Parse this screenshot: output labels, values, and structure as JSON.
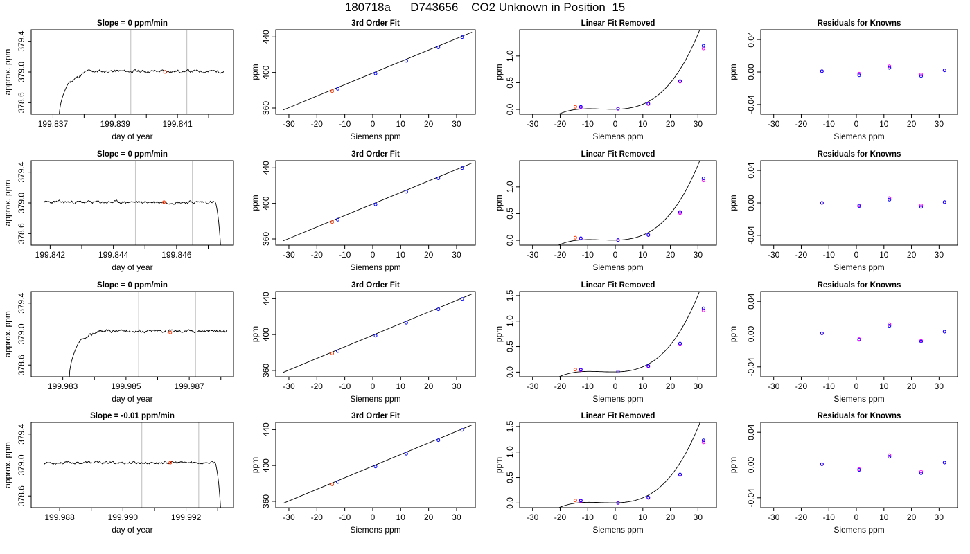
{
  "title": "180718a      D743656    CO2 Unknown in Position  15",
  "colors": {
    "trace": "#000000",
    "unknown": "#ff3300",
    "known": "#0000ff",
    "resid1": "#ff00ff",
    "resid2": "#0000ff",
    "vline": "#c8c8c8"
  },
  "chart_data": [
    {
      "type": "line",
      "panel": "time",
      "row": 1,
      "title": "Slope =  0  ppm/min",
      "xlabel": "day of year",
      "ylabel": "approx. ppm",
      "xlim": [
        199.8363,
        199.8428
      ],
      "ylim": [
        378.45,
        379.55
      ],
      "xticks": [
        199.837,
        199.838,
        199.839,
        199.84,
        199.841,
        199.842
      ],
      "xticklabels": [
        "199.837",
        "",
        "199.839",
        "",
        "199.841",
        ""
      ],
      "yticks": [
        378.6,
        379.0,
        379.4
      ],
      "yticklabels": [
        "378.6",
        "379.0",
        "379.4"
      ],
      "vlines": [
        199.8395,
        199.8413
      ],
      "marker": {
        "x": 199.8406,
        "y": 379.0
      },
      "series": {
        "start": 199.8371,
        "end": 199.8425,
        "level": 379.01,
        "shape": "rise",
        "rise_start": 199.8372,
        "rise_end": 199.8375,
        "low": 378.4,
        "seed": 11,
        "amp": 0.014
      }
    },
    {
      "type": "scatter",
      "panel": "fit",
      "row": 1,
      "title": "3rd Order Fit",
      "xlabel": "Siemens ppm",
      "ylabel": "ppm",
      "xlim": [
        -34.7,
        36.7
      ],
      "ylim": [
        353,
        448
      ],
      "xticks": [
        -30,
        -20,
        -10,
        0,
        10,
        20,
        30
      ],
      "yticks": [
        360,
        400,
        440
      ],
      "knowns": {
        "x": [
          -12.5,
          1.0,
          12.0,
          23.5,
          32.0
        ],
        "y": [
          381.6,
          398.8,
          413.1,
          428.2,
          439.7
        ]
      },
      "unknown": {
        "x": [
          -14.5
        ],
        "y": [
          379.0
        ]
      },
      "curve": {
        "x0": -32,
        "x1": 35.5,
        "a": 399.3,
        "b": 1.295
      }
    },
    {
      "type": "scatter",
      "panel": "linremoved",
      "row": 1,
      "title": "Linear Fit Removed",
      "xlabel": "Siemens ppm",
      "ylabel": "ppm",
      "xlim": [
        -34.7,
        36.7
      ],
      "ylim": [
        -0.09,
        1.49
      ],
      "xticks": [
        -30,
        -20,
        -10,
        0,
        10,
        20,
        30
      ],
      "yticks": [
        0.0,
        0.5,
        1.0
      ],
      "yticklabels": [
        "0.0",
        "0.5",
        "1.0"
      ],
      "knowns": {
        "x": [
          -12.5,
          -12.5,
          1.0,
          1.0,
          12.0,
          12.0,
          23.5,
          23.5,
          32.0,
          32.0
        ],
        "y": [
          0.04,
          0.05,
          0.01,
          0.015,
          0.1,
          0.11,
          0.52,
          0.53,
          1.14,
          1.19
        ]
      },
      "unknown": {
        "x": [
          -14.5
        ],
        "y": [
          0.05
        ]
      },
      "curve": {
        "x0": -32,
        "x1": 35.5,
        "cubic": 1.4
      },
      "cubic_scale": 1.0
    },
    {
      "type": "scatter",
      "panel": "resid",
      "row": 1,
      "title": "Residuals for Knowns",
      "xlabel": "Siemens ppm",
      "ylabel": "ppm",
      "xlim": [
        -34.7,
        36.7
      ],
      "ylim": [
        -0.052,
        0.052
      ],
      "xticks": [
        -30,
        -20,
        -10,
        0,
        10,
        20,
        30
      ],
      "yticks": [
        -0.04,
        0.0,
        0.04
      ],
      "yticklabels": [
        "-0.04",
        "0.00",
        "0.04"
      ],
      "points": {
        "x": [
          -12.5,
          1.0,
          12.0,
          23.5,
          32.0
        ],
        "y1": [
          0.001,
          -0.002,
          0.007,
          -0.003,
          0.002
        ],
        "y2": [
          0.001,
          -0.004,
          0.005,
          -0.005,
          0.002
        ]
      }
    },
    {
      "type": "line",
      "panel": "time",
      "row": 2,
      "title": "Slope =  0  ppm/min",
      "xlabel": "day of year",
      "ylabel": "approx. ppm",
      "xlim": [
        199.8414,
        199.8478
      ],
      "ylim": [
        378.45,
        379.55
      ],
      "xticks": [
        199.842,
        199.843,
        199.844,
        199.845,
        199.846,
        199.847
      ],
      "xticklabels": [
        "199.842",
        "",
        "199.844",
        "",
        "199.846",
        ""
      ],
      "yticks": [
        378.6,
        379.0,
        379.4
      ],
      "yticklabels": [
        "378.6",
        "379.0",
        "379.4"
      ],
      "vlines": [
        199.8447,
        199.8465
      ],
      "marker": {
        "x": 199.8456,
        "y": 379.01
      },
      "series": {
        "start": 199.8418,
        "end": 199.8474,
        "level": 379.01,
        "shape": "fall",
        "fall_start": 199.8472,
        "fall_end": 199.8474,
        "low": 378.4,
        "seed": 23,
        "amp": 0.014
      }
    },
    {
      "type": "scatter",
      "panel": "fit",
      "row": 2,
      "title": "3rd Order Fit",
      "xlabel": "Siemens ppm",
      "ylabel": "ppm",
      "xlim": [
        -34.7,
        36.7
      ],
      "ylim": [
        353,
        448
      ],
      "xticks": [
        -30,
        -20,
        -10,
        0,
        10,
        20,
        30
      ],
      "yticks": [
        360,
        400,
        440
      ],
      "knowns": {
        "x": [
          -12.5,
          1.0,
          12.0,
          23.5,
          32.0
        ],
        "y": [
          381.6,
          398.8,
          413.1,
          428.2,
          439.7
        ]
      },
      "unknown": {
        "x": [
          -14.5
        ],
        "y": [
          379.0
        ]
      },
      "curve": {
        "x0": -32,
        "x1": 35.5,
        "a": 399.3,
        "b": 1.295
      }
    },
    {
      "type": "scatter",
      "panel": "linremoved",
      "row": 2,
      "title": "Linear Fit Removed",
      "xlabel": "Siemens ppm",
      "ylabel": "ppm",
      "xlim": [
        -34.7,
        36.7
      ],
      "ylim": [
        -0.09,
        1.49
      ],
      "xticks": [
        -30,
        -20,
        -10,
        0,
        10,
        20,
        30
      ],
      "yticks": [
        0.0,
        0.5,
        1.0
      ],
      "yticklabels": [
        "0.0",
        "0.5",
        "1.0"
      ],
      "knowns": {
        "x": [
          -12.5,
          -12.5,
          1.0,
          1.0,
          12.0,
          12.0,
          23.5,
          23.5,
          32.0,
          32.0
        ],
        "y": [
          0.03,
          0.04,
          0.0,
          0.005,
          0.1,
          0.1,
          0.51,
          0.53,
          1.12,
          1.16
        ]
      },
      "unknown": {
        "x": [
          -14.5
        ],
        "y": [
          0.05
        ]
      },
      "curve": {
        "x0": -32,
        "x1": 35.5,
        "cubic": 1.4
      },
      "cubic_scale": 1.0
    },
    {
      "type": "scatter",
      "panel": "resid",
      "row": 2,
      "title": "Residuals for Knowns",
      "xlabel": "Siemens ppm",
      "ylabel": "ppm",
      "xlim": [
        -34.7,
        36.7
      ],
      "ylim": [
        -0.052,
        0.052
      ],
      "xticks": [
        -30,
        -20,
        -10,
        0,
        10,
        20,
        30
      ],
      "yticks": [
        -0.04,
        0.0,
        0.04
      ],
      "yticklabels": [
        "-0.04",
        "0.00",
        "0.04"
      ],
      "points": {
        "x": [
          -12.5,
          1.0,
          12.0,
          23.5,
          32.0
        ],
        "y1": [
          0.0,
          -0.003,
          0.006,
          -0.003,
          0.001
        ],
        "y2": [
          0.0,
          -0.004,
          0.004,
          -0.005,
          0.001
        ]
      }
    },
    {
      "type": "line",
      "panel": "time",
      "row": 3,
      "title": "Slope =  0  ppm/min",
      "xlabel": "day of year",
      "ylabel": "approx. ppm",
      "xlim": [
        199.982,
        199.9884
      ],
      "ylim": [
        378.45,
        379.55
      ],
      "xticks": [
        199.983,
        199.984,
        199.985,
        199.986,
        199.987,
        199.988
      ],
      "xticklabels": [
        "199.983",
        "",
        "199.985",
        "",
        "199.987",
        ""
      ],
      "yticks": [
        378.6,
        379.0,
        379.4
      ],
      "yticklabels": [
        "378.6",
        "379.0",
        "379.4"
      ],
      "vlines": [
        199.9854,
        199.9872
      ],
      "marker": {
        "x": 199.9864,
        "y": 379.02
      },
      "series": {
        "start": 199.9832,
        "end": 199.9882,
        "level": 379.04,
        "shape": "rise",
        "rise_start": 199.9832,
        "rise_end": 199.9835,
        "low": 378.4,
        "seed": 37,
        "amp": 0.014
      }
    },
    {
      "type": "scatter",
      "panel": "fit",
      "row": 3,
      "title": "3rd Order Fit",
      "xlabel": "Siemens ppm",
      "ylabel": "ppm",
      "xlim": [
        -34.7,
        36.7
      ],
      "ylim": [
        353,
        448
      ],
      "xticks": [
        -30,
        -20,
        -10,
        0,
        10,
        20,
        30
      ],
      "yticks": [
        360,
        400,
        440
      ],
      "knowns": {
        "x": [
          -12.5,
          1.0,
          12.0,
          23.5,
          32.0
        ],
        "y": [
          381.6,
          398.8,
          413.1,
          428.2,
          439.7
        ]
      },
      "unknown": {
        "x": [
          -14.5
        ],
        "y": [
          379.0
        ]
      },
      "curve": {
        "x0": -32,
        "x1": 35.5,
        "a": 399.3,
        "b": 1.295
      }
    },
    {
      "type": "scatter",
      "panel": "linremoved",
      "row": 3,
      "title": "Linear Fit Removed",
      "xlabel": "Siemens ppm",
      "ylabel": "ppm",
      "xlim": [
        -34.7,
        36.7
      ],
      "ylim": [
        -0.09,
        1.58
      ],
      "xticks": [
        -30,
        -20,
        -10,
        0,
        10,
        20,
        30
      ],
      "yticks": [
        0.0,
        0.5,
        1.0,
        1.5
      ],
      "yticklabels": [
        "0.0",
        "0.5",
        "1.0",
        "1.5"
      ],
      "knowns": {
        "x": [
          -12.5,
          -12.5,
          1.0,
          1.0,
          12.0,
          12.0,
          23.5,
          23.5,
          32.0,
          32.0
        ],
        "y": [
          0.04,
          0.05,
          0.01,
          0.01,
          0.11,
          0.12,
          0.55,
          0.56,
          1.21,
          1.25
        ]
      },
      "unknown": {
        "x": [
          -14.5
        ],
        "y": [
          0.05
        ]
      },
      "curve": {
        "x0": -32,
        "x1": 35.5,
        "cubic": 1.5
      },
      "cubic_scale": 1.07
    },
    {
      "type": "scatter",
      "panel": "resid",
      "row": 3,
      "title": "Residuals for Knowns",
      "xlabel": "Siemens ppm",
      "ylabel": "ppm",
      "xlim": [
        -34.7,
        36.7
      ],
      "ylim": [
        -0.052,
        0.052
      ],
      "xticks": [
        -30,
        -20,
        -10,
        0,
        10,
        20,
        30
      ],
      "yticks": [
        -0.04,
        0.0,
        0.04
      ],
      "yticklabels": [
        "-0.04",
        "0.00",
        "0.04"
      ],
      "points": {
        "x": [
          -12.5,
          1.0,
          12.0,
          23.5,
          32.0
        ],
        "y1": [
          0.001,
          -0.006,
          0.012,
          -0.008,
          0.003
        ],
        "y2": [
          0.001,
          -0.007,
          0.01,
          -0.009,
          0.003
        ]
      }
    },
    {
      "type": "line",
      "panel": "time",
      "row": 4,
      "title": "Slope =  -0.01  ppm/min",
      "xlabel": "day of year",
      "ylabel": "approx. ppm",
      "xlim": [
        199.9871,
        199.9935
      ],
      "ylim": [
        378.45,
        379.55
      ],
      "xticks": [
        199.988,
        199.989,
        199.99,
        199.991,
        199.992,
        199.993
      ],
      "xticklabels": [
        "199.988",
        "",
        "199.990",
        "",
        "199.992",
        ""
      ],
      "yticks": [
        378.6,
        379.0,
        379.4
      ],
      "yticklabels": [
        "378.6",
        "379.0",
        "379.4"
      ],
      "vlines": [
        199.9906,
        199.9924
      ],
      "marker": {
        "x": 199.9915,
        "y": 379.03
      },
      "series": {
        "start": 199.9875,
        "end": 199.9931,
        "level": 379.03,
        "shape": "fall",
        "fall_start": 199.9929,
        "fall_end": 199.9931,
        "low": 378.4,
        "seed": 53,
        "amp": 0.013
      }
    },
    {
      "type": "scatter",
      "panel": "fit",
      "row": 4,
      "title": "3rd Order Fit",
      "xlabel": "Siemens ppm",
      "ylabel": "ppm",
      "xlim": [
        -34.7,
        36.7
      ],
      "ylim": [
        353,
        448
      ],
      "xticks": [
        -30,
        -20,
        -10,
        0,
        10,
        20,
        30
      ],
      "yticks": [
        360,
        400,
        440
      ],
      "knowns": {
        "x": [
          -12.5,
          1.0,
          12.0,
          23.5,
          32.0
        ],
        "y": [
          381.6,
          398.8,
          413.1,
          428.2,
          439.7
        ]
      },
      "unknown": {
        "x": [
          -14.5
        ],
        "y": [
          379.0
        ]
      },
      "curve": {
        "x0": -32,
        "x1": 35.5,
        "a": 399.3,
        "b": 1.295
      }
    },
    {
      "type": "scatter",
      "panel": "linremoved",
      "row": 4,
      "title": "Linear Fit Removed",
      "xlabel": "Siemens ppm",
      "ylabel": "ppm",
      "xlim": [
        -34.7,
        36.7
      ],
      "ylim": [
        -0.09,
        1.58
      ],
      "xticks": [
        -30,
        -20,
        -10,
        0,
        10,
        20,
        30
      ],
      "yticks": [
        0.0,
        0.5,
        1.0,
        1.5
      ],
      "yticklabels": [
        "0.0",
        "0.5",
        "1.0",
        "1.5"
      ],
      "knowns": {
        "x": [
          -12.5,
          -12.5,
          1.0,
          1.0,
          12.0,
          12.0,
          23.5,
          23.5,
          32.0,
          32.0
        ],
        "y": [
          0.04,
          0.05,
          0.0,
          0.005,
          0.1,
          0.11,
          0.55,
          0.56,
          1.19,
          1.23
        ]
      },
      "unknown": {
        "x": [
          -14.5
        ],
        "y": [
          0.05
        ]
      },
      "curve": {
        "x0": -32,
        "x1": 35.5,
        "cubic": 1.5
      },
      "cubic_scale": 1.05
    },
    {
      "type": "scatter",
      "panel": "resid",
      "row": 4,
      "title": "Residuals for Knowns",
      "xlabel": "Siemens ppm",
      "ylabel": "ppm",
      "xlim": [
        -34.7,
        36.7
      ],
      "ylim": [
        -0.052,
        0.052
      ],
      "xticks": [
        -30,
        -20,
        -10,
        0,
        10,
        20,
        30
      ],
      "yticks": [
        -0.04,
        0.0,
        0.04
      ],
      "yticklabels": [
        "-0.04",
        "0.00",
        "0.04"
      ],
      "points": {
        "x": [
          -12.5,
          1.0,
          12.0,
          23.5,
          32.0
        ],
        "y1": [
          0.001,
          -0.005,
          0.012,
          -0.008,
          0.003
        ],
        "y2": [
          0.001,
          -0.006,
          0.01,
          -0.01,
          0.003
        ]
      }
    }
  ]
}
